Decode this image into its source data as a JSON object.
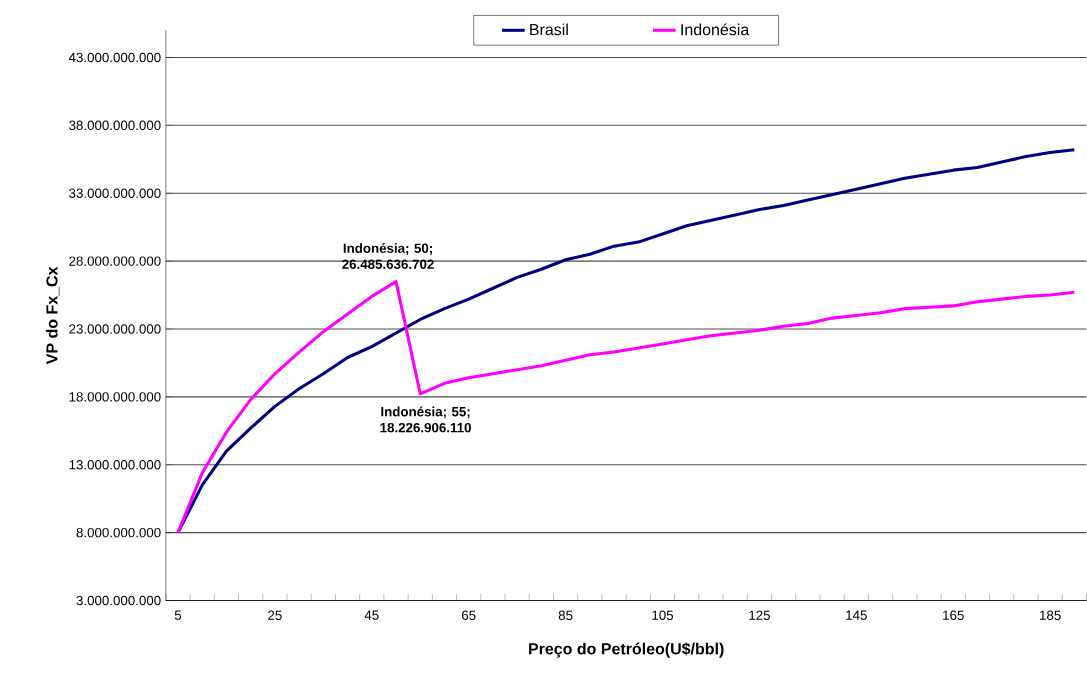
{
  "chart_data": {
    "type": "line",
    "xlabel": "Preço do Petróleo(U$/bbl)",
    "ylabel": "VP do Fx_Cx",
    "categories": [
      "5",
      null,
      null,
      null,
      "25",
      null,
      null,
      null,
      "45",
      null,
      null,
      null,
      "65",
      null,
      null,
      null,
      "85",
      null,
      null,
      null,
      "105",
      null,
      null,
      null,
      "125",
      null,
      null,
      null,
      "145",
      null,
      null,
      null,
      "165",
      null,
      null,
      null,
      "185",
      null
    ],
    "series": [
      {
        "name": "Brasil",
        "color": "#000080",
        "values": [
          8000000000,
          11500000000,
          14000000000,
          15700000000,
          17300000000,
          18600000000,
          19700000000,
          20900000000,
          21700000000,
          22700000000,
          23700000000,
          24500000000,
          25200000000,
          26000000000,
          26800000000,
          27400000000,
          28100000000,
          28500000000,
          29100000000,
          29400000000,
          30000000000,
          30600000000,
          31000000000,
          31400000000,
          31800000000,
          32100000000,
          32500000000,
          32900000000,
          33300000000,
          33700000000,
          34100000000,
          34400000000,
          34700000000,
          34900000000,
          35300000000,
          35700000000,
          36000000000,
          36200000000
        ]
      },
      {
        "name": "Indonésia",
        "color": "#ff00ff",
        "values": [
          8000000000,
          12400000000,
          15400000000,
          17800000000,
          19700000000,
          21300000000,
          22800000000,
          24100000000,
          25400000000,
          26485636702,
          18226906110,
          19000000000,
          19400000000,
          19700000000,
          20000000000,
          20300000000,
          20700000000,
          21100000000,
          21300000000,
          21600000000,
          21900000000,
          22200000000,
          22500000000,
          22700000000,
          22900000000,
          23200000000,
          23400000000,
          23800000000,
          24000000000,
          24200000000,
          24500000000,
          24600000000,
          24700000000,
          25000000000,
          25200000000,
          25400000000,
          25500000000,
          25700000000
        ]
      }
    ],
    "ylim": [
      3000000000,
      45000000000
    ],
    "yticks": [
      {
        "value": 3000000000,
        "label": "3.000.000.000"
      },
      {
        "value": 8000000000,
        "label": "8.000.000.000"
      },
      {
        "value": 13000000000,
        "label": "13.000.000.000"
      },
      {
        "value": 18000000000,
        "label": "18.000.000.000"
      },
      {
        "value": 23000000000,
        "label": "23.000.000.000"
      },
      {
        "value": 28000000000,
        "label": "28.000.000.000"
      },
      {
        "value": 33000000000,
        "label": "33.000.000.000"
      },
      {
        "value": 38000000000,
        "label": "38.000.000.000"
      },
      {
        "value": 43000000000,
        "label": "43.000.000.000"
      }
    ],
    "annotations": [
      {
        "text": "Indonésia; 50; 26.485.636.702",
        "y": 26485636702
      },
      {
        "text": "Indonésia; 55; 18.226.906.110",
        "y": 18226906110
      }
    ],
    "grid": "y",
    "legend": "top",
    "marker": "none",
    "line_style": "solid"
  }
}
